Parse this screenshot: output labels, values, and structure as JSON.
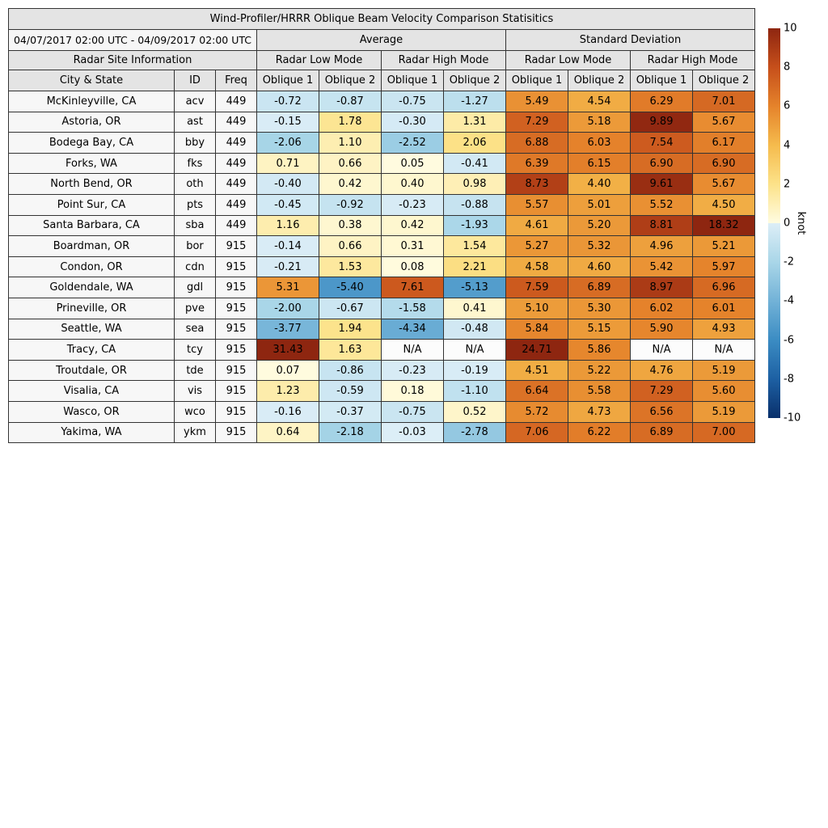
{
  "chart_data": {
    "type": "heatmap",
    "title": "Wind-Profiler/HRRR Oblique Beam Velocity Comparison Statisitics",
    "unit": "knot",
    "color_range": [
      -10,
      10
    ],
    "header": {
      "date_range": "04/07/2017 02:00 UTC - 04/09/2017 02:00 UTC",
      "average_group": "Average",
      "std_group": "Standard Deviation",
      "site_info": "Radar Site Information",
      "radar_low_mode": "Radar Low Mode",
      "radar_high_mode": "Radar High Mode",
      "city_state": "City & State",
      "id": "ID",
      "freq": "Freq",
      "oblique1": "Oblique 1",
      "oblique2": "Oblique 2"
    },
    "column_groups": [
      "Average / Radar Low Mode / Oblique 1",
      "Average / Radar Low Mode / Oblique 2",
      "Average / Radar High Mode / Oblique 1",
      "Average / Radar High Mode / Oblique 2",
      "Standard Deviation / Radar Low Mode / Oblique 1",
      "Standard Deviation / Radar Low Mode / Oblique 2",
      "Standard Deviation / Radar High Mode / Oblique 1",
      "Standard Deviation / Radar High Mode / Oblique 2"
    ],
    "rows": [
      {
        "city": "McKinleyville, CA",
        "id": "acv",
        "freq": "449",
        "values": [
          "-0.72",
          "-0.87",
          "-0.75",
          "-1.27",
          "5.49",
          "4.54",
          "6.29",
          "7.01"
        ]
      },
      {
        "city": "Astoria, OR",
        "id": "ast",
        "freq": "449",
        "values": [
          "-0.15",
          "1.78",
          "-0.30",
          "1.31",
          "7.29",
          "5.18",
          "9.89",
          "5.67"
        ]
      },
      {
        "city": "Bodega Bay, CA",
        "id": "bby",
        "freq": "449",
        "values": [
          "-2.06",
          "1.10",
          "-2.52",
          "2.06",
          "6.88",
          "6.03",
          "7.54",
          "6.17"
        ]
      },
      {
        "city": "Forks, WA",
        "id": "fks",
        "freq": "449",
        "values": [
          "0.71",
          "0.66",
          "0.05",
          "-0.41",
          "6.39",
          "6.15",
          "6.90",
          "6.90"
        ]
      },
      {
        "city": "North Bend, OR",
        "id": "oth",
        "freq": "449",
        "values": [
          "-0.40",
          "0.42",
          "0.40",
          "0.98",
          "8.73",
          "4.40",
          "9.61",
          "5.67"
        ]
      },
      {
        "city": "Point Sur, CA",
        "id": "pts",
        "freq": "449",
        "values": [
          "-0.45",
          "-0.92",
          "-0.23",
          "-0.88",
          "5.57",
          "5.01",
          "5.52",
          "4.50"
        ]
      },
      {
        "city": "Santa Barbara, CA",
        "id": "sba",
        "freq": "449",
        "values": [
          "1.16",
          "0.38",
          "0.42",
          "-1.93",
          "4.61",
          "5.20",
          "8.81",
          "18.32"
        ]
      },
      {
        "city": "Boardman, OR",
        "id": "bor",
        "freq": "915",
        "values": [
          "-0.14",
          "0.66",
          "0.31",
          "1.54",
          "5.27",
          "5.32",
          "4.96",
          "5.21"
        ]
      },
      {
        "city": "Condon, OR",
        "id": "cdn",
        "freq": "915",
        "values": [
          "-0.21",
          "1.53",
          "0.08",
          "2.21",
          "4.58",
          "4.60",
          "5.42",
          "5.97"
        ]
      },
      {
        "city": "Goldendale, WA",
        "id": "gdl",
        "freq": "915",
        "values": [
          "5.31",
          "-5.40",
          "7.61",
          "-5.13",
          "7.59",
          "6.89",
          "8.97",
          "6.96"
        ]
      },
      {
        "city": "Prineville, OR",
        "id": "pve",
        "freq": "915",
        "values": [
          "-2.00",
          "-0.67",
          "-1.58",
          "0.41",
          "5.10",
          "5.30",
          "6.02",
          "6.01"
        ]
      },
      {
        "city": "Seattle, WA",
        "id": "sea",
        "freq": "915",
        "values": [
          "-3.77",
          "1.94",
          "-4.34",
          "-0.48",
          "5.84",
          "5.15",
          "5.90",
          "4.93"
        ]
      },
      {
        "city": "Tracy, CA",
        "id": "tcy",
        "freq": "915",
        "values": [
          "31.43",
          "1.63",
          "N/A",
          "N/A",
          "24.71",
          "5.86",
          "N/A",
          "N/A"
        ]
      },
      {
        "city": "Troutdale, OR",
        "id": "tde",
        "freq": "915",
        "values": [
          "0.07",
          "-0.86",
          "-0.23",
          "-0.19",
          "4.51",
          "5.22",
          "4.76",
          "5.19"
        ]
      },
      {
        "city": "Visalia, CA",
        "id": "vis",
        "freq": "915",
        "values": [
          "1.23",
          "-0.59",
          "0.18",
          "-1.10",
          "6.64",
          "5.58",
          "7.29",
          "5.60"
        ]
      },
      {
        "city": "Wasco, OR",
        "id": "wco",
        "freq": "915",
        "values": [
          "-0.16",
          "-0.37",
          "-0.75",
          "0.52",
          "5.72",
          "4.73",
          "6.56",
          "5.19"
        ]
      },
      {
        "city": "Yakima, WA",
        "id": "ykm",
        "freq": "915",
        "values": [
          "0.64",
          "-2.18",
          "-0.03",
          "-2.78",
          "7.06",
          "6.22",
          "6.89",
          "7.00"
        ]
      }
    ],
    "colorbar": {
      "unit_label": "knot",
      "max": 10,
      "min": -10,
      "tick_labels": [
        "10",
        "8",
        "6",
        "4",
        "2",
        "0",
        "-2",
        "-4",
        "-6",
        "-8",
        "-10"
      ],
      "na_color": "#fcfcfc",
      "positive_stops": [
        [
          0,
          "#fffce1"
        ],
        [
          2,
          "#fce289"
        ],
        [
          4,
          "#f5bb4d"
        ],
        [
          6,
          "#e5832b"
        ],
        [
          8,
          "#c64f1b"
        ],
        [
          10,
          "#8e2610"
        ]
      ],
      "negative_stops": [
        [
          0,
          "#ddeef7"
        ],
        [
          -2,
          "#a9d6e8"
        ],
        [
          -4,
          "#72b2d7"
        ],
        [
          -6,
          "#3b8cc3"
        ],
        [
          -8,
          "#1d60a3"
        ],
        [
          -10,
          "#09306b"
        ]
      ]
    }
  }
}
